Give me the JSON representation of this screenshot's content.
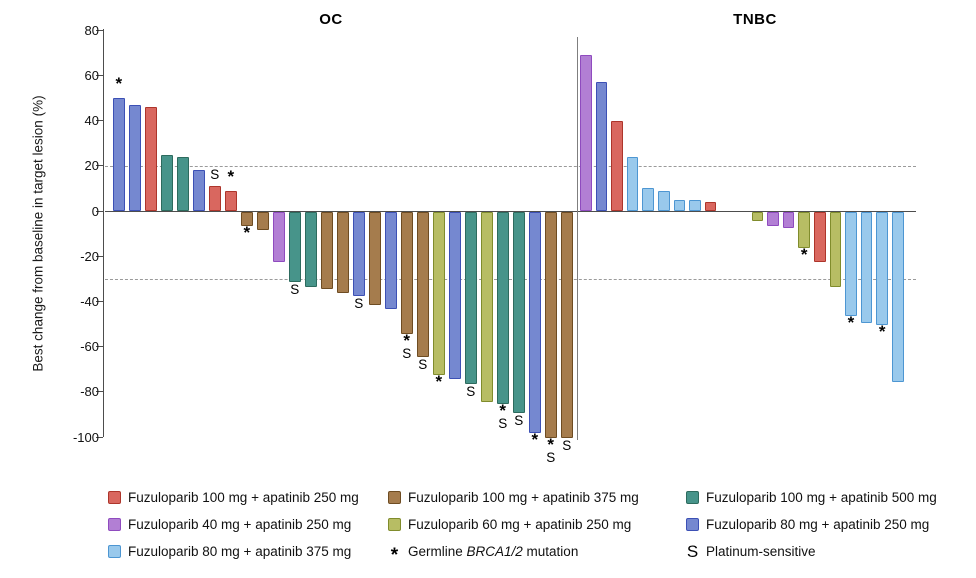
{
  "chart_data": {
    "type": "bar",
    "title": "",
    "ylabel": "Best change from baseline in target lesion (%)",
    "xlabel": "",
    "ylim": [
      -100,
      80
    ],
    "yticks": [
      80,
      60,
      40,
      20,
      0,
      -20,
      -40,
      -60,
      -80,
      -100
    ],
    "reference_lines": [
      20,
      -30
    ],
    "grid": "off",
    "legend_position": "bottom",
    "groups": {
      "red": {
        "label": "Fuzuloparib 100 mg + apatinib 250 mg",
        "fill": "#d9675f",
        "border": "#ad352b"
      },
      "brown": {
        "label": "Fuzuloparib 100 mg + apatinib 375 mg",
        "fill": "#a57c4d",
        "border": "#6e4c22"
      },
      "teal": {
        "label": "Fuzuloparib 100 mg + apatinib 500 mg",
        "fill": "#47948a",
        "border": "#2d6b5e"
      },
      "purple": {
        "label": "Fuzuloparib 40 mg + apatinib 250 mg",
        "fill": "#b27fd4",
        "border": "#8f4bbf"
      },
      "olive": {
        "label": "Fuzuloparib 60 mg + apatinib 250 mg",
        "fill": "#b7bd64",
        "border": "#808c2c"
      },
      "blue": {
        "label": "Fuzuloparib 80 mg + apatinib 250 mg",
        "fill": "#7588d0",
        "border": "#3c50b5"
      },
      "lightblue": {
        "label": "Fuzuloparib 80 mg + apatinib 375 mg",
        "fill": "#99c9ec",
        "border": "#4d96d2"
      }
    },
    "panels": [
      {
        "title": "OC",
        "bars": [
          {
            "value": 50,
            "group": "blue",
            "flags": "*"
          },
          {
            "value": 47,
            "group": "blue",
            "flags": ""
          },
          {
            "value": 46,
            "group": "red",
            "flags": ""
          },
          {
            "value": 25,
            "group": "teal",
            "flags": ""
          },
          {
            "value": 24,
            "group": "teal",
            "flags": ""
          },
          {
            "value": 18,
            "group": "blue",
            "flags": ""
          },
          {
            "value": 11,
            "group": "red",
            "flags": "S"
          },
          {
            "value": 9,
            "group": "red",
            "flags": "*"
          },
          {
            "value": -6,
            "group": "brown",
            "flags": "*"
          },
          {
            "value": -8,
            "group": "brown",
            "flags": ""
          },
          {
            "value": -22,
            "group": "purple",
            "flags": ""
          },
          {
            "value": -31,
            "group": "teal",
            "flags": "S"
          },
          {
            "value": -33,
            "group": "teal",
            "flags": ""
          },
          {
            "value": -34,
            "group": "brown",
            "flags": ""
          },
          {
            "value": -36,
            "group": "brown",
            "flags": ""
          },
          {
            "value": -37,
            "group": "blue",
            "flags": "S"
          },
          {
            "value": -41,
            "group": "brown",
            "flags": ""
          },
          {
            "value": -43,
            "group": "blue",
            "flags": ""
          },
          {
            "value": -54,
            "group": "brown",
            "flags": "*S"
          },
          {
            "value": -64,
            "group": "brown",
            "flags": "S"
          },
          {
            "value": -72,
            "group": "olive",
            "flags": "*"
          },
          {
            "value": -74,
            "group": "blue",
            "flags": ""
          },
          {
            "value": -76,
            "group": "teal",
            "flags": "S"
          },
          {
            "value": -84,
            "group": "olive",
            "flags": ""
          },
          {
            "value": -85,
            "group": "teal",
            "flags": "*S"
          },
          {
            "value": -89,
            "group": "teal",
            "flags": "S"
          },
          {
            "value": -98,
            "group": "blue",
            "flags": "*"
          },
          {
            "value": -100,
            "group": "brown",
            "flags": "*S"
          },
          {
            "value": -100,
            "group": "brown",
            "flags": "S"
          }
        ]
      },
      {
        "title": "TNBC",
        "bars": [
          {
            "value": 69,
            "group": "purple",
            "flags": ""
          },
          {
            "value": 57,
            "group": "blue",
            "flags": ""
          },
          {
            "value": 40,
            "group": "red",
            "flags": ""
          },
          {
            "value": 24,
            "group": "lightblue",
            "flags": ""
          },
          {
            "value": 10,
            "group": "lightblue",
            "flags": ""
          },
          {
            "value": 9,
            "group": "lightblue",
            "flags": ""
          },
          {
            "value": 5,
            "group": "lightblue",
            "flags": ""
          },
          {
            "value": 5,
            "group": "lightblue",
            "flags": ""
          },
          {
            "value": 4,
            "group": "red",
            "flags": ""
          },
          {
            "value": 0,
            "group": "lightblue",
            "flags": ""
          },
          {
            "value": 0,
            "group": "lightblue",
            "flags": ""
          },
          {
            "value": -4,
            "group": "olive",
            "flags": ""
          },
          {
            "value": -6,
            "group": "purple",
            "flags": ""
          },
          {
            "value": -7,
            "group": "purple",
            "flags": ""
          },
          {
            "value": -16,
            "group": "olive",
            "flags": "*"
          },
          {
            "value": -22,
            "group": "red",
            "flags": ""
          },
          {
            "value": -33,
            "group": "olive",
            "flags": ""
          },
          {
            "value": -46,
            "group": "lightblue",
            "flags": "*"
          },
          {
            "value": -49,
            "group": "lightblue",
            "flags": ""
          },
          {
            "value": -50,
            "group": "lightblue",
            "flags": "*"
          },
          {
            "value": -75,
            "group": "lightblue",
            "flags": ""
          }
        ]
      }
    ]
  },
  "legend": {
    "columns": [
      [
        "red",
        "purple",
        "lightblue"
      ],
      [
        "brown",
        "olive"
      ],
      [
        "teal",
        "blue"
      ]
    ],
    "symbol_items": [
      {
        "symbol": "*",
        "pre": "Germline ",
        "italic": "BRCA1/2",
        "post": " mutation"
      },
      {
        "symbol": "S",
        "pre": "Platinum-sensitive",
        "italic": "",
        "post": ""
      }
    ]
  }
}
